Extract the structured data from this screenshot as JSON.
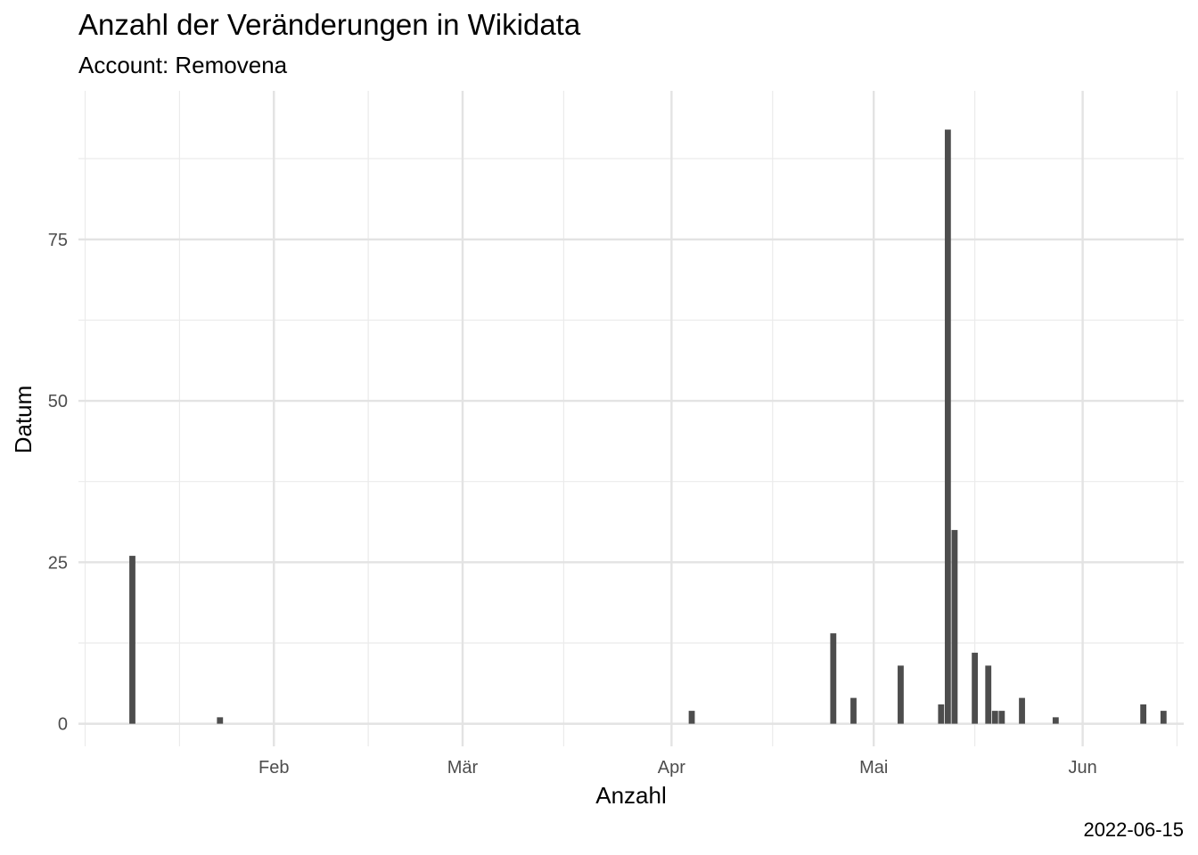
{
  "chart_data": {
    "type": "bar",
    "title": "Anzahl der Veränderungen in Wikidata",
    "subtitle": "Account: Removena",
    "xlabel": "Anzahl",
    "ylabel": "Datum",
    "caption": "2022-06-15",
    "x_axis_type": "date",
    "xlim": [
      "2022-01-03",
      "2022-06-16"
    ],
    "ylim": [
      -3.5,
      98
    ],
    "y_ticks": [
      0,
      25,
      50,
      75
    ],
    "y_minor_ticks": [
      12.5,
      37.5,
      62.5,
      87.5
    ],
    "x_ticks": [
      {
        "date": "2022-02-01",
        "label": "Feb"
      },
      {
        "date": "2022-03-01",
        "label": "Mär"
      },
      {
        "date": "2022-04-01",
        "label": "Apr"
      },
      {
        "date": "2022-05-01",
        "label": "Mai"
      },
      {
        "date": "2022-06-01",
        "label": "Jun"
      }
    ],
    "x_minor_ticks": [
      "2022-01-04",
      "2022-01-18",
      "2022-02-15",
      "2022-03-16",
      "2022-04-16",
      "2022-05-16",
      "2022-06-15"
    ],
    "bar_color": "#4d4d4d",
    "grid": true,
    "series": [
      {
        "dates": [
          "2022-01-11",
          "2022-01-24",
          "2022-04-04",
          "2022-04-25",
          "2022-04-28",
          "2022-05-05",
          "2022-05-11",
          "2022-05-12",
          "2022-05-13",
          "2022-05-16",
          "2022-05-18",
          "2022-05-19",
          "2022-05-20",
          "2022-05-23",
          "2022-05-28",
          "2022-06-10",
          "2022-06-13"
        ],
        "values": [
          26,
          1,
          2,
          14,
          4,
          9,
          3,
          92,
          30,
          11,
          9,
          2,
          2,
          4,
          1,
          3,
          2
        ]
      }
    ]
  }
}
